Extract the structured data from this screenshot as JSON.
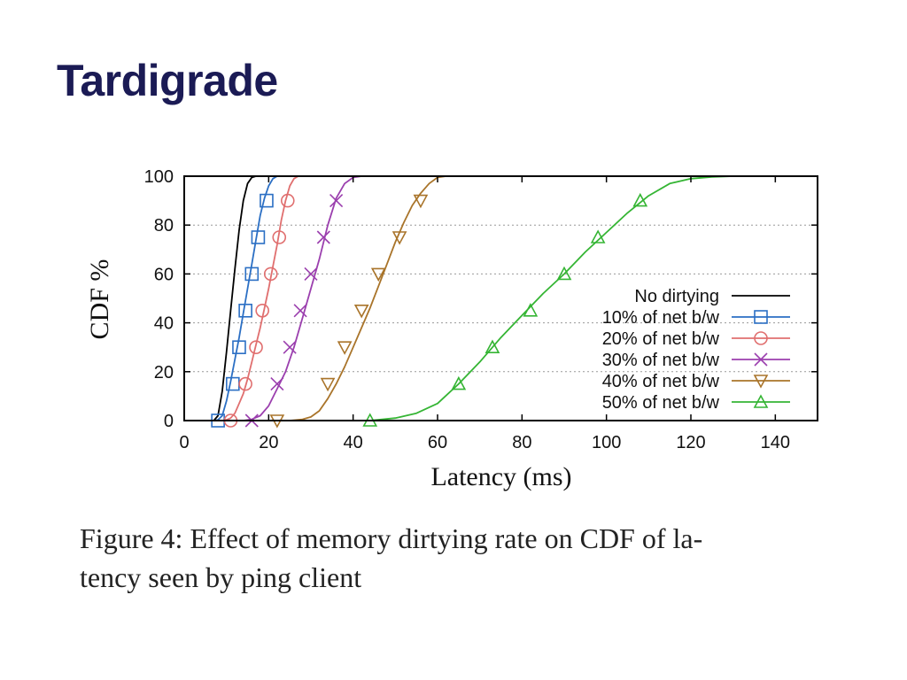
{
  "slide": {
    "title": "Tardigrade"
  },
  "caption": {
    "line1": "Figure 4: Effect of memory dirtying rate on CDF of la-",
    "line2": "tency seen by ping client"
  },
  "chart_data": {
    "type": "line",
    "title": "",
    "xlabel": "Latency (ms)",
    "ylabel": "CDF %",
    "xlim": [
      0,
      150
    ],
    "ylim": [
      0,
      100
    ],
    "xticks": [
      0,
      20,
      40,
      60,
      80,
      100,
      120,
      140
    ],
    "yticks": [
      0,
      20,
      40,
      60,
      80,
      100
    ],
    "grid": "horizontal dotted",
    "legend_position": "right",
    "series": [
      {
        "name": "No dirtying",
        "color": "#000000",
        "marker": "none",
        "x": [
          7,
          8,
          9,
          10,
          11,
          12,
          13,
          14,
          15,
          16,
          17
        ],
        "y": [
          0,
          2,
          12,
          28,
          45,
          62,
          78,
          90,
          97,
          99.5,
          100
        ],
        "marker_points": []
      },
      {
        "name": "10% of net b/w",
        "color": "#2b6fc4",
        "marker": "square",
        "x": [
          7,
          8,
          9,
          10,
          11,
          12,
          13,
          14,
          15,
          16,
          17,
          18,
          19,
          20,
          21,
          22
        ],
        "y": [
          0,
          0.3,
          2,
          8,
          16,
          25,
          34,
          44,
          54,
          64,
          74,
          84,
          91,
          96,
          99,
          100
        ],
        "marker_points": [
          [
            8,
            0
          ],
          [
            11.5,
            15
          ],
          [
            13,
            30
          ],
          [
            14.5,
            45
          ],
          [
            16,
            60
          ],
          [
            17.5,
            75
          ],
          [
            19.5,
            90
          ]
        ]
      },
      {
        "name": "20% of net b/w",
        "color": "#e06f6f",
        "marker": "circle",
        "x": [
          9,
          10,
          11,
          12,
          13,
          14,
          15,
          16,
          17,
          18,
          19,
          20,
          21,
          22,
          23,
          24,
          25,
          26,
          27
        ],
        "y": [
          0,
          0.3,
          1,
          3,
          7,
          11,
          17,
          24,
          31,
          38,
          46,
          54,
          63,
          72,
          82,
          90,
          96,
          99,
          100
        ],
        "marker_points": [
          [
            11,
            0
          ],
          [
            14.5,
            15
          ],
          [
            17,
            30
          ],
          [
            18.5,
            45
          ],
          [
            20.5,
            60
          ],
          [
            22.5,
            75
          ],
          [
            24.5,
            90
          ]
        ]
      },
      {
        "name": "30% of net b/w",
        "color": "#9b3fae",
        "marker": "cross",
        "x": [
          14,
          16,
          18,
          20,
          22,
          24,
          26,
          28,
          30,
          32,
          34,
          36,
          38,
          40,
          42
        ],
        "y": [
          0,
          0.5,
          2,
          6,
          13,
          20,
          30,
          42,
          54,
          66,
          80,
          91,
          97,
          99.5,
          100
        ],
        "marker_points": [
          [
            16,
            0
          ],
          [
            22,
            15
          ],
          [
            25,
            30
          ],
          [
            27.5,
            45
          ],
          [
            30,
            60
          ],
          [
            33,
            75
          ],
          [
            36,
            90
          ]
        ]
      },
      {
        "name": "40% of net b/w",
        "color": "#a9742a",
        "marker": "triangle-down",
        "x": [
          25,
          28,
          30,
          32,
          34,
          36,
          38,
          40,
          42,
          44,
          46,
          48,
          50,
          52,
          54,
          56,
          58,
          60,
          62
        ],
        "y": [
          0,
          0.5,
          1.5,
          4,
          9,
          15,
          22,
          30,
          38,
          46,
          55,
          64,
          73,
          81,
          88,
          93,
          97,
          99.5,
          100
        ],
        "marker_points": [
          [
            22,
            0
          ],
          [
            34,
            15
          ],
          [
            38,
            30
          ],
          [
            42,
            45
          ],
          [
            46,
            60
          ],
          [
            51,
            75
          ],
          [
            56,
            90
          ]
        ]
      },
      {
        "name": "50% of net b/w",
        "color": "#35b534",
        "marker": "triangle-up",
        "x": [
          44,
          50,
          55,
          60,
          65,
          70,
          75,
          80,
          85,
          90,
          95,
          100,
          105,
          110,
          115,
          120,
          125,
          130,
          135
        ],
        "y": [
          0,
          1,
          3,
          7,
          15,
          24,
          34,
          43,
          52,
          60,
          69,
          77,
          85,
          92,
          97,
          99,
          99.7,
          100,
          100
        ],
        "marker_points": [
          [
            44,
            0
          ],
          [
            65,
            15
          ],
          [
            73,
            30
          ],
          [
            82,
            45
          ],
          [
            90,
            60
          ],
          [
            98,
            75
          ],
          [
            108,
            90
          ]
        ]
      }
    ]
  }
}
